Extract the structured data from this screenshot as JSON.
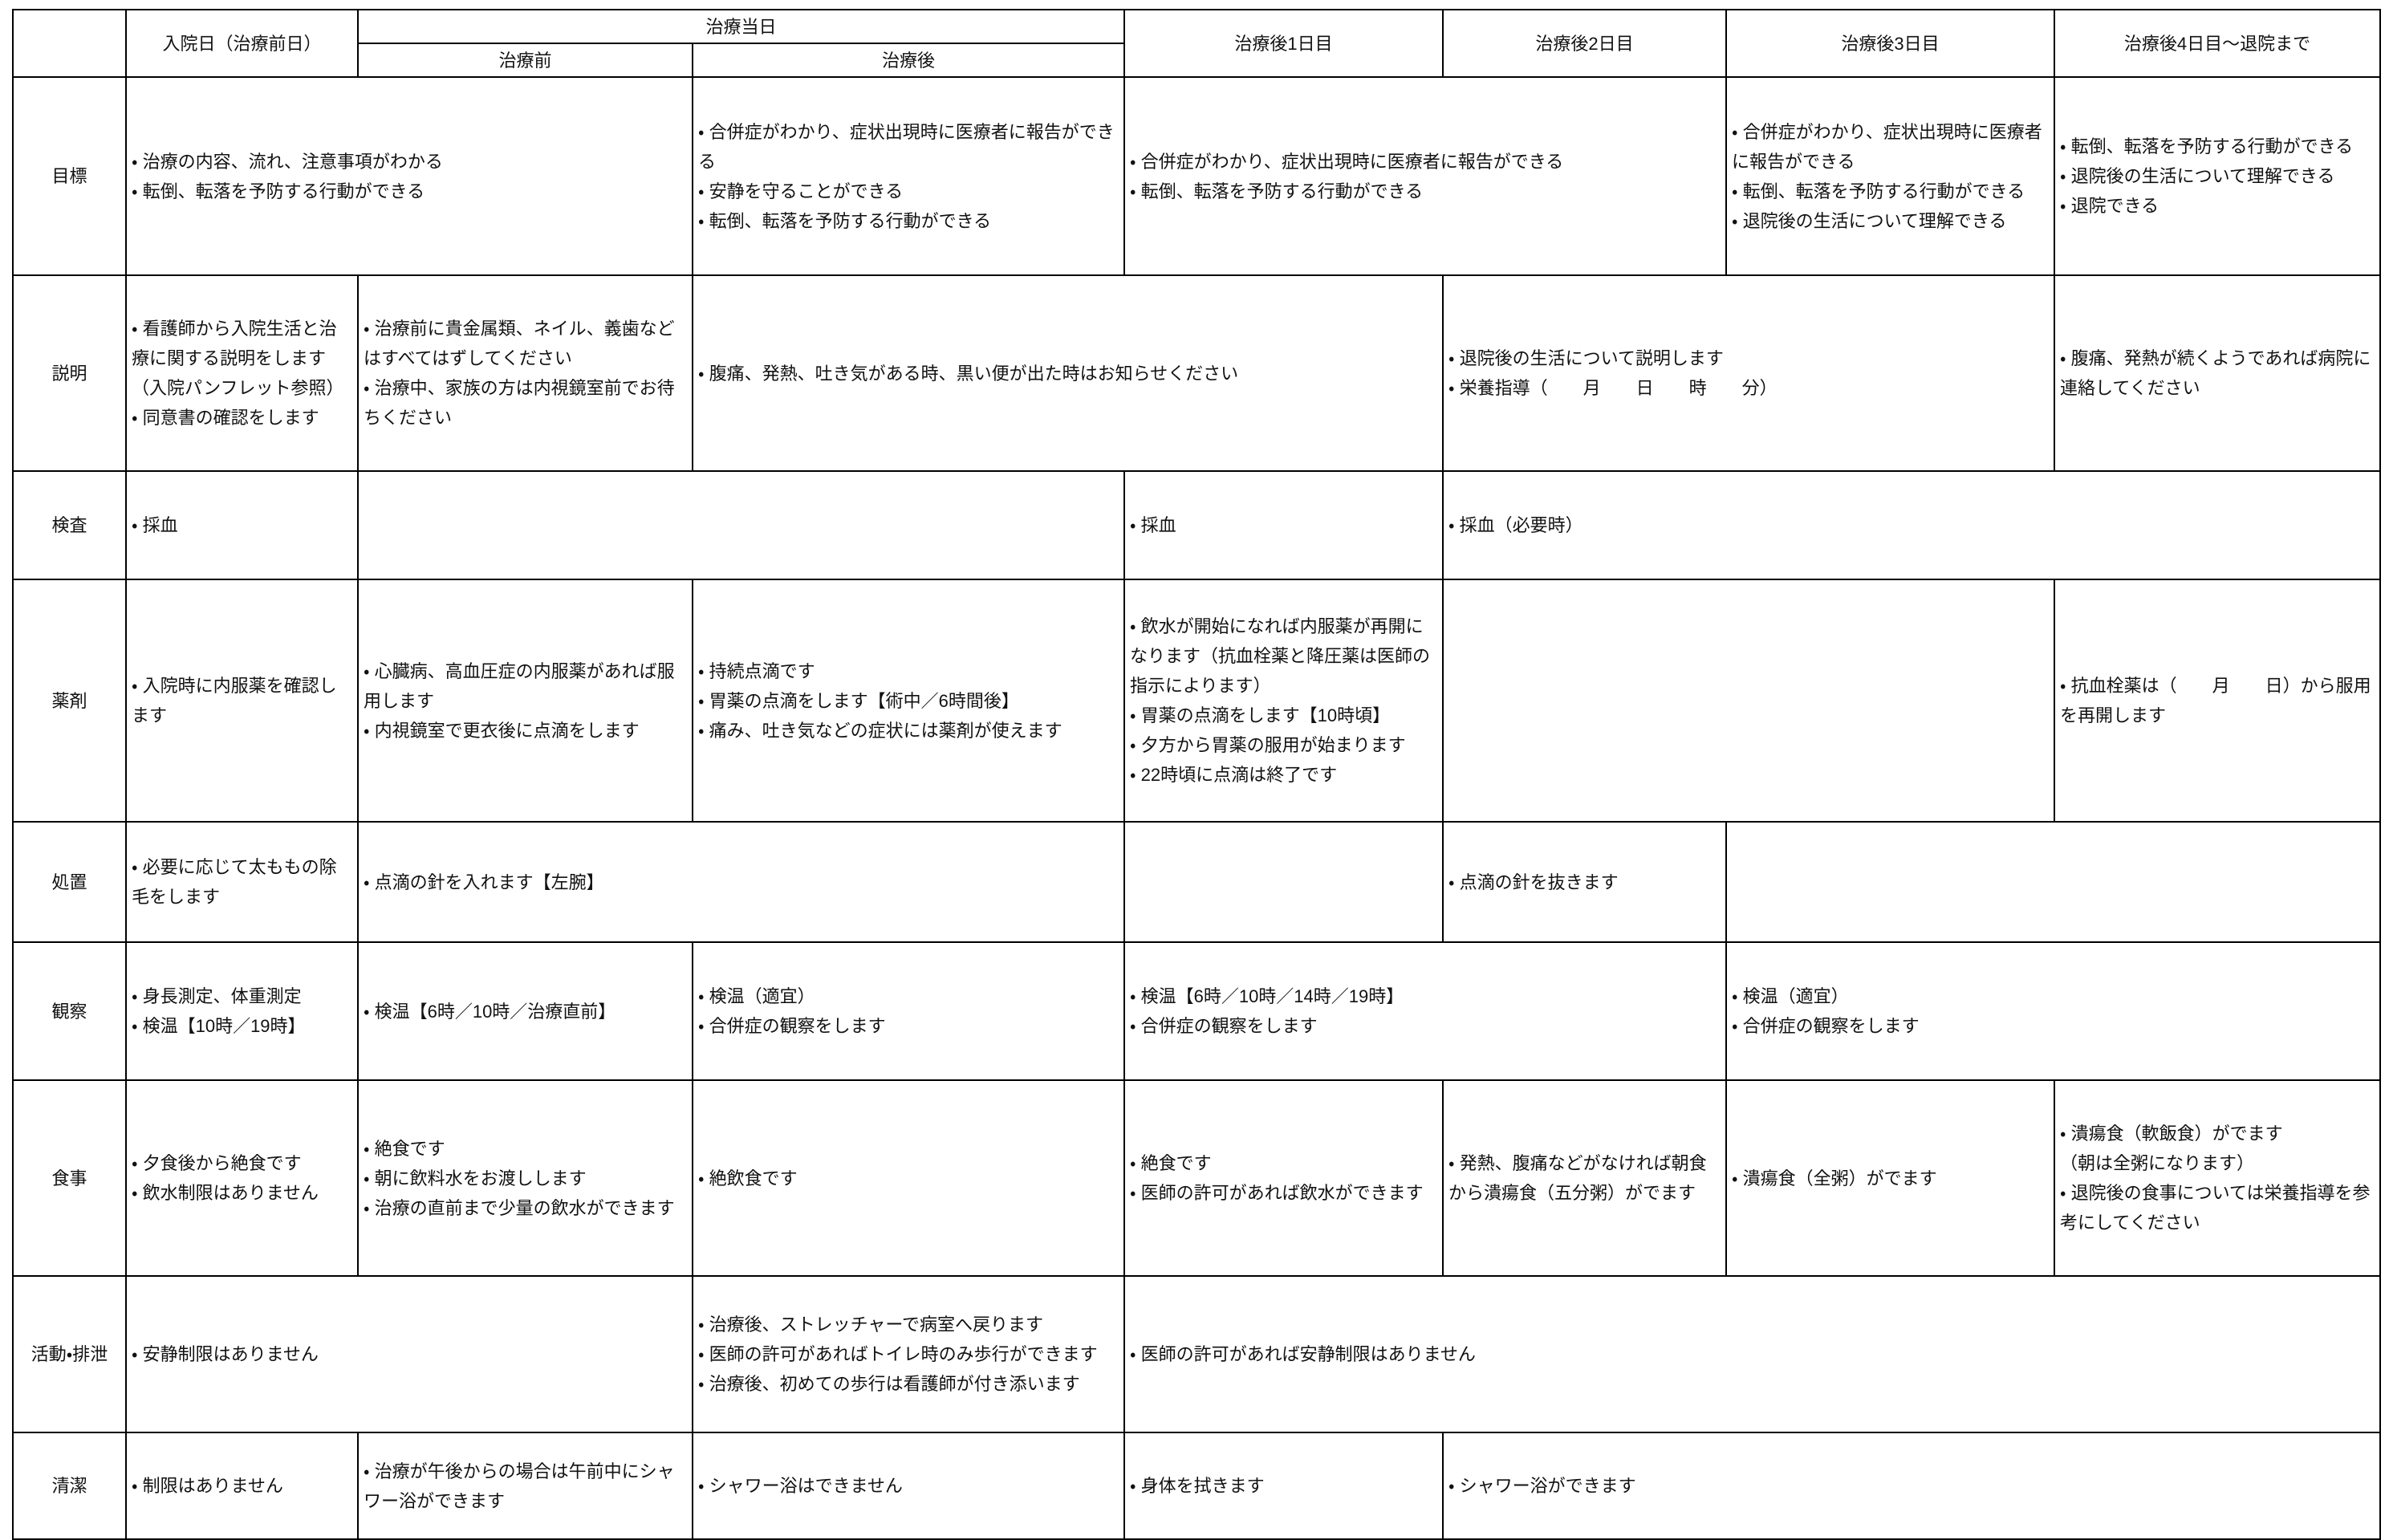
{
  "table": {
    "header": {
      "admission": "入院日（治療前日）",
      "treatment_day": "治療当日",
      "before": "治療前",
      "after": "治療後",
      "day1": "治療後1日目",
      "day2": "治療後2日目",
      "day3": "治療後3日目",
      "day4": "治療後4日目〜退院まで"
    },
    "rows": [
      {
        "label": "目標",
        "cells": [
          [
            "・ 治療の内容、流れ、注意事項がわかる",
            "・ 転倒、転落を予防する行動ができる"
          ],
          [
            "・ 合併症がわかり、症状出現時に医療者に報告ができる",
            "・ 安静を守ることができる",
            "・ 転倒、転落を予防する行動ができる"
          ],
          [
            "・ 合併症がわかり、症状出現時に医療者に報告ができる",
            "・ 転倒、転落を予防する行動ができる"
          ],
          [
            "・ 合併症がわかり、症状出現時に医療者に報告ができる",
            "・ 転倒、転落を予防する行動ができる",
            "・ 退院後の生活について理解できる"
          ],
          [
            "・ 転倒、転落を予防する行動ができる",
            "・ 退院後の生活について理解できる",
            "・ 退院できる"
          ]
        ]
      },
      {
        "label": "説明",
        "cells": [
          [
            "・ 看護師から入院生活と治療に関する説明をします",
            "（入院パンフレット参照）",
            "・ 同意書の確認をします"
          ],
          [
            "・ 治療前に貴金属類、ネイル、義歯などはすべてはずしてください",
            "・ 治療中、家族の方は内視鏡室前でお待ちください"
          ],
          [
            "・ 腹痛、発熱、吐き気がある時、黒い便が出た時はお知らせください"
          ],
          [
            "・ 退院後の生活について説明します",
            "・ 栄養指導（　　月　　日　　時　　分）"
          ],
          [
            "・ 腹痛、発熱が続くようであれば病院に連絡してください"
          ]
        ]
      },
      {
        "label": "検査",
        "cells": [
          [
            "・ 採血"
          ],
          [
            "・ 採血"
          ],
          [
            "・ 採血（必要時）"
          ]
        ]
      },
      {
        "label": "薬剤",
        "cells": [
          [
            "・ 入院時に内服薬を確認します"
          ],
          [
            "・ 心臓病、高血圧症の内服薬があれば服用します",
            "・ 内視鏡室で更衣後に点滴をします"
          ],
          [
            "・ 持続点滴です",
            "・ 胃薬の点滴をします【術中／6時間後】",
            "・ 痛み、吐き気などの症状には薬剤が使えます"
          ],
          [
            "・ 飲水が開始になれば内服薬が再開になります（抗血栓薬と降圧薬は医師の指示によります）",
            "・ 胃薬の点滴をします【10時頃】",
            "・ 夕方から胃薬の服用が始まります",
            "・ 22時頃に点滴は終了です"
          ],
          [
            "・ 抗血栓薬は（　　月　　日）から服用を再開します"
          ]
        ]
      },
      {
        "label": "処置",
        "cells": [
          [
            "・ 必要に応じて太ももの除毛をします"
          ],
          [
            "・ 点滴の針を入れます【左腕】"
          ],
          [
            "・ 点滴の針を抜きます"
          ]
        ]
      },
      {
        "label": "観察",
        "cells": [
          [
            "・ 身長測定、体重測定",
            "・ 検温【10時／19時】"
          ],
          [
            "・ 検温【6時／10時／治療直前】"
          ],
          [
            "・ 検温（適宜）",
            "・ 合併症の観察をします"
          ],
          [
            "・ 検温【6時／10時／14時／19時】",
            "・ 合併症の観察をします"
          ],
          [
            "・ 検温（適宜）",
            "・ 合併症の観察をします"
          ]
        ]
      },
      {
        "label": "食事",
        "cells": [
          [
            "・ 夕食後から絶食です",
            "・ 飲水制限はありません"
          ],
          [
            "・ 絶食です",
            "・ 朝に飲料水をお渡しします",
            "・ 治療の直前まで少量の飲水ができます"
          ],
          [
            "・ 絶飲食です"
          ],
          [
            "・ 絶食です",
            "・ 医師の許可があれば飲水ができます"
          ],
          [
            "・ 発熱、腹痛などがなければ朝食から潰瘍食（五分粥）がでます"
          ],
          [
            "・ 潰瘍食（全粥）がでます"
          ],
          [
            "・ 潰瘍食（軟飯食）がでます",
            "（朝は全粥になります）",
            "・ 退院後の食事については栄養指導を参考にしてください"
          ]
        ]
      },
      {
        "label": "活動・排泄",
        "cells": [
          [
            "・ 安静制限はありません"
          ],
          [
            "・ 治療後、ストレッチャーで病室へ戻ります",
            "・ 医師の許可があればトイレ時のみ歩行ができます",
            "・ 治療後、初めての歩行は看護師が付き添います"
          ],
          [
            "・ 医師の許可があれば安静制限はありません"
          ]
        ]
      },
      {
        "label": "清潔",
        "cells": [
          [
            "・ 制限はありません"
          ],
          [
            "・ 治療が午後からの場合は午前中にシャワー浴ができます"
          ],
          [
            "・ シャワー浴はできません"
          ],
          [
            "・ 身体を拭きます"
          ],
          [
            "・ シャワー浴ができます"
          ]
        ]
      }
    ]
  }
}
